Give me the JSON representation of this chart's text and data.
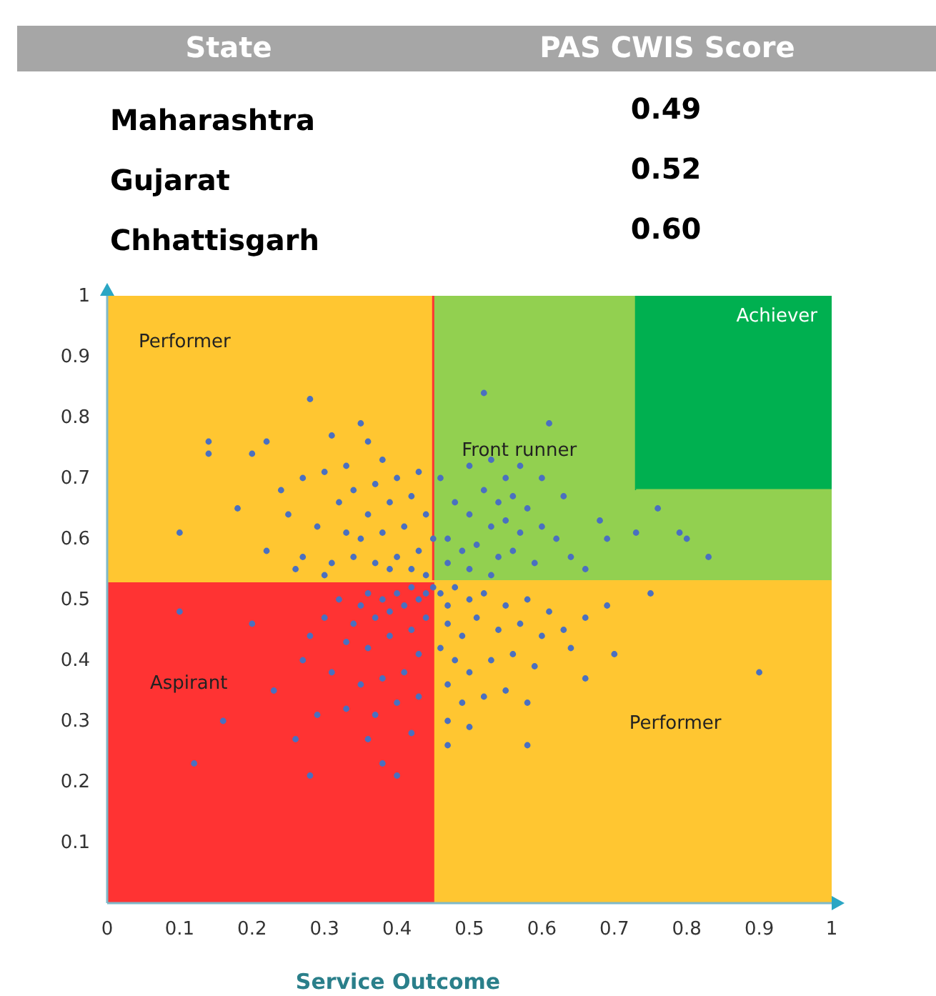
{
  "chart_data": [
    {
      "type": "other",
      "xlabel": "State",
      "ylabel": "PAS CWIS Score",
      "categories": [
        "Maharashtra",
        "Gujarat",
        "Chhattisgarh"
      ],
      "value_labels": [
        "0.49",
        "0.52",
        "0.60"
      ]
    },
    {
      "type": "scatter",
      "xlabel": "Service Outcome",
      "xlim": [
        0,
        1
      ],
      "ylim": [
        0,
        1
      ],
      "xticks": [
        0,
        0.1,
        0.2,
        0.3,
        0.4,
        0.5,
        0.6,
        0.7,
        0.8,
        0.9,
        1
      ],
      "yticks": [
        0.1,
        0.2,
        0.3,
        0.4,
        0.5,
        0.6,
        0.7,
        0.8,
        0.9,
        1
      ],
      "grid": false,
      "marker": "circle",
      "ref_lines": [
        {
          "axis": "x",
          "value": 0.45,
          "color": "#ff3333"
        },
        {
          "axis": "y",
          "value": 0.53,
          "color": "#ffc631"
        },
        {
          "axis": "x",
          "value": 0.73,
          "color": "#00b050"
        },
        {
          "axis": "y",
          "value": 0.68,
          "color": "#92d050"
        }
      ],
      "annotations": [
        "Performer",
        "Front runner",
        "Achiever",
        "Aspirant",
        "Performer"
      ],
      "series": [
        {
          "color": "#4a70c0",
          "x": [
            0.28,
            0.14,
            0.14,
            0.1,
            0.2,
            0.22,
            0.35,
            0.31,
            0.36,
            0.33,
            0.38,
            0.3,
            0.27,
            0.34,
            0.37,
            0.4,
            0.32,
            0.36,
            0.39,
            0.42,
            0.25,
            0.29,
            0.33,
            0.35,
            0.38,
            0.41,
            0.44,
            0.22,
            0.27,
            0.31,
            0.34,
            0.37,
            0.4,
            0.43,
            0.45,
            0.26,
            0.3,
            0.39,
            0.42,
            0.44,
            0.18,
            0.24,
            0.43,
            0.52,
            0.61,
            0.76,
            0.83,
            0.8,
            0.79,
            0.73,
            0.68,
            0.69,
            0.63,
            0.5,
            0.53,
            0.55,
            0.57,
            0.52,
            0.54,
            0.56,
            0.58,
            0.48,
            0.5,
            0.53,
            0.55,
            0.57,
            0.6,
            0.62,
            0.47,
            0.49,
            0.51,
            0.54,
            0.56,
            0.59,
            0.64,
            0.66,
            0.47,
            0.5,
            0.53,
            0.6,
            0.46,
            0.45,
            0.44,
            0.43,
            0.42,
            0.41,
            0.4,
            0.39,
            0.38,
            0.37,
            0.36,
            0.35,
            0.34,
            0.32,
            0.3,
            0.28,
            0.33,
            0.36,
            0.39,
            0.42,
            0.44,
            0.43,
            0.41,
            0.38,
            0.35,
            0.31,
            0.27,
            0.4,
            0.37,
            0.43,
            0.33,
            0.29,
            0.42,
            0.36,
            0.1,
            0.12,
            0.16,
            0.2,
            0.23,
            0.28,
            0.26,
            0.4,
            0.38,
            0.46,
            0.47,
            0.48,
            0.5,
            0.52,
            0.55,
            0.58,
            0.61,
            0.47,
            0.49,
            0.51,
            0.54,
            0.57,
            0.6,
            0.63,
            0.46,
            0.48,
            0.5,
            0.53,
            0.56,
            0.59,
            0.47,
            0.49,
            0.52,
            0.55,
            0.58,
            0.47,
            0.5,
            0.9,
            0.58,
            0.7,
            0.69,
            0.75,
            0.66,
            0.47,
            0.64,
            0.66
          ],
          "values": [
            0.83,
            0.76,
            0.74,
            0.61,
            0.74,
            0.76,
            0.79,
            0.77,
            0.76,
            0.72,
            0.73,
            0.71,
            0.7,
            0.68,
            0.69,
            0.7,
            0.66,
            0.64,
            0.66,
            0.67,
            0.64,
            0.62,
            0.61,
            0.6,
            0.61,
            0.62,
            0.64,
            0.58,
            0.57,
            0.56,
            0.57,
            0.56,
            0.57,
            0.58,
            0.6,
            0.55,
            0.54,
            0.55,
            0.55,
            0.54,
            0.65,
            0.68,
            0.71,
            0.84,
            0.79,
            0.65,
            0.57,
            0.6,
            0.61,
            0.61,
            0.63,
            0.6,
            0.67,
            0.72,
            0.73,
            0.7,
            0.72,
            0.68,
            0.66,
            0.67,
            0.65,
            0.66,
            0.64,
            0.62,
            0.63,
            0.61,
            0.62,
            0.6,
            0.6,
            0.58,
            0.59,
            0.57,
            0.58,
            0.56,
            0.57,
            0.55,
            0.56,
            0.55,
            0.54,
            0.7,
            0.7,
            0.52,
            0.51,
            0.5,
            0.52,
            0.49,
            0.51,
            0.48,
            0.5,
            0.47,
            0.51,
            0.49,
            0.46,
            0.5,
            0.47,
            0.44,
            0.43,
            0.42,
            0.44,
            0.45,
            0.47,
            0.41,
            0.38,
            0.37,
            0.36,
            0.38,
            0.4,
            0.33,
            0.31,
            0.34,
            0.32,
            0.31,
            0.28,
            0.27,
            0.48,
            0.23,
            0.3,
            0.46,
            0.35,
            0.21,
            0.27,
            0.21,
            0.23,
            0.51,
            0.49,
            0.52,
            0.5,
            0.51,
            0.49,
            0.5,
            0.48,
            0.46,
            0.44,
            0.47,
            0.45,
            0.46,
            0.44,
            0.45,
            0.42,
            0.4,
            0.38,
            0.4,
            0.41,
            0.39,
            0.36,
            0.33,
            0.34,
            0.35,
            0.33,
            0.3,
            0.29,
            0.38,
            0.26,
            0.41,
            0.49,
            0.51,
            0.37,
            0.26,
            0.42,
            0.47
          ]
        }
      ]
    }
  ]
}
